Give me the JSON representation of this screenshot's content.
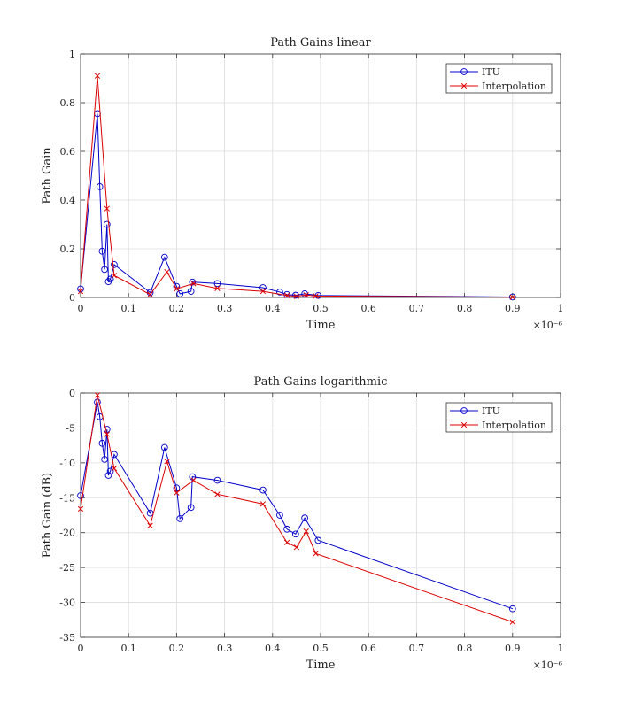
{
  "colors": {
    "itu": "#0000cc",
    "interp": "#dd0000",
    "grid": "#dcdcdc",
    "axis": "#333333"
  },
  "chart_data": [
    {
      "type": "line",
      "title": "Path Gains linear",
      "xlabel": "Time",
      "ylabel": "Path Gain",
      "x_multiplier_label": "×10⁻⁶",
      "xlim": [
        0,
        1
      ],
      "ylim": [
        0,
        1
      ],
      "xticks": [
        0,
        0.1,
        0.2,
        0.3,
        0.4,
        0.5,
        0.6,
        0.7,
        0.8,
        0.9,
        1
      ],
      "xtick_labels": [
        "0",
        "0.1",
        "0.2",
        "0.3",
        "0.4",
        "0.5",
        "0.6",
        "0.7",
        "0.8",
        "0.9",
        "1"
      ],
      "yticks": [
        0,
        0.2,
        0.4,
        0.6,
        0.8,
        1
      ],
      "ytick_labels": [
        "0",
        "0.2",
        "0.4",
        "0.6",
        "0.8",
        "1"
      ],
      "grid": true,
      "legend_position": "top-right",
      "series": [
        {
          "name": "ITU",
          "marker": "circle",
          "x": [
            0,
            0.035,
            0.04,
            0.045,
            0.05,
            0.055,
            0.058,
            0.062,
            0.07,
            0.145,
            0.175,
            0.2,
            0.207,
            0.23,
            0.233,
            0.285,
            0.38,
            0.415,
            0.43,
            0.448,
            0.467,
            0.495,
            0.9
          ],
          "y": [
            0.035,
            0.755,
            0.455,
            0.19,
            0.115,
            0.3,
            0.065,
            0.075,
            0.135,
            0.02,
            0.165,
            0.045,
            0.015,
            0.025,
            0.063,
            0.057,
            0.04,
            0.022,
            0.012,
            0.009,
            0.015,
            0.008,
            0.002
          ]
        },
        {
          "name": "Interpolation",
          "marker": "x",
          "x": [
            0,
            0.035,
            0.055,
            0.07,
            0.145,
            0.18,
            0.2,
            0.235,
            0.285,
            0.38,
            0.43,
            0.45,
            0.47,
            0.49,
            0.9
          ],
          "y": [
            0.025,
            0.91,
            0.365,
            0.09,
            0.012,
            0.105,
            0.035,
            0.057,
            0.037,
            0.025,
            0.008,
            0.005,
            0.01,
            0.006,
            0.001
          ]
        }
      ]
    },
    {
      "type": "line",
      "title": "Path Gains logarithmic",
      "xlabel": "Time",
      "ylabel": "Path Gain (dB)",
      "x_multiplier_label": "×10⁻⁶",
      "xlim": [
        0,
        1
      ],
      "ylim": [
        -35,
        0
      ],
      "xticks": [
        0,
        0.1,
        0.2,
        0.3,
        0.4,
        0.5,
        0.6,
        0.7,
        0.8,
        0.9,
        1
      ],
      "xtick_labels": [
        "0",
        "0.1",
        "0.2",
        "0.3",
        "0.4",
        "0.5",
        "0.6",
        "0.7",
        "0.8",
        "0.9",
        "1"
      ],
      "yticks": [
        0,
        -5,
        -10,
        -15,
        -20,
        -25,
        -30,
        -35
      ],
      "ytick_labels": [
        "0",
        "-5",
        "-10",
        "-15",
        "-20",
        "-25",
        "-30",
        "-35"
      ],
      "grid": true,
      "legend_position": "top-right",
      "series": [
        {
          "name": "ITU",
          "marker": "circle",
          "x": [
            0,
            0.035,
            0.04,
            0.045,
            0.05,
            0.055,
            0.058,
            0.062,
            0.07,
            0.145,
            0.175,
            0.2,
            0.207,
            0.23,
            0.233,
            0.285,
            0.38,
            0.415,
            0.43,
            0.448,
            0.467,
            0.495,
            0.9
          ],
          "y": [
            -14.7,
            -1.3,
            -3.4,
            -7.2,
            -9.5,
            -5.2,
            -11.8,
            -11.2,
            -8.8,
            -17.2,
            -7.8,
            -13.6,
            -18,
            -16.4,
            -12,
            -12.5,
            -13.9,
            -17.5,
            -19.5,
            -20.2,
            -17.9,
            -21.1,
            -30.9
          ]
        },
        {
          "name": "Interpolation",
          "marker": "x",
          "x": [
            0,
            0.035,
            0.055,
            0.07,
            0.145,
            0.18,
            0.2,
            0.235,
            0.285,
            0.38,
            0.43,
            0.45,
            0.47,
            0.49,
            0.9
          ],
          "y": [
            -16.6,
            -0.3,
            -5.9,
            -10.8,
            -19,
            -9.8,
            -14.3,
            -12.5,
            -14.5,
            -15.9,
            -21.4,
            -22.1,
            -19.8,
            -23,
            -32.8
          ]
        }
      ]
    }
  ]
}
